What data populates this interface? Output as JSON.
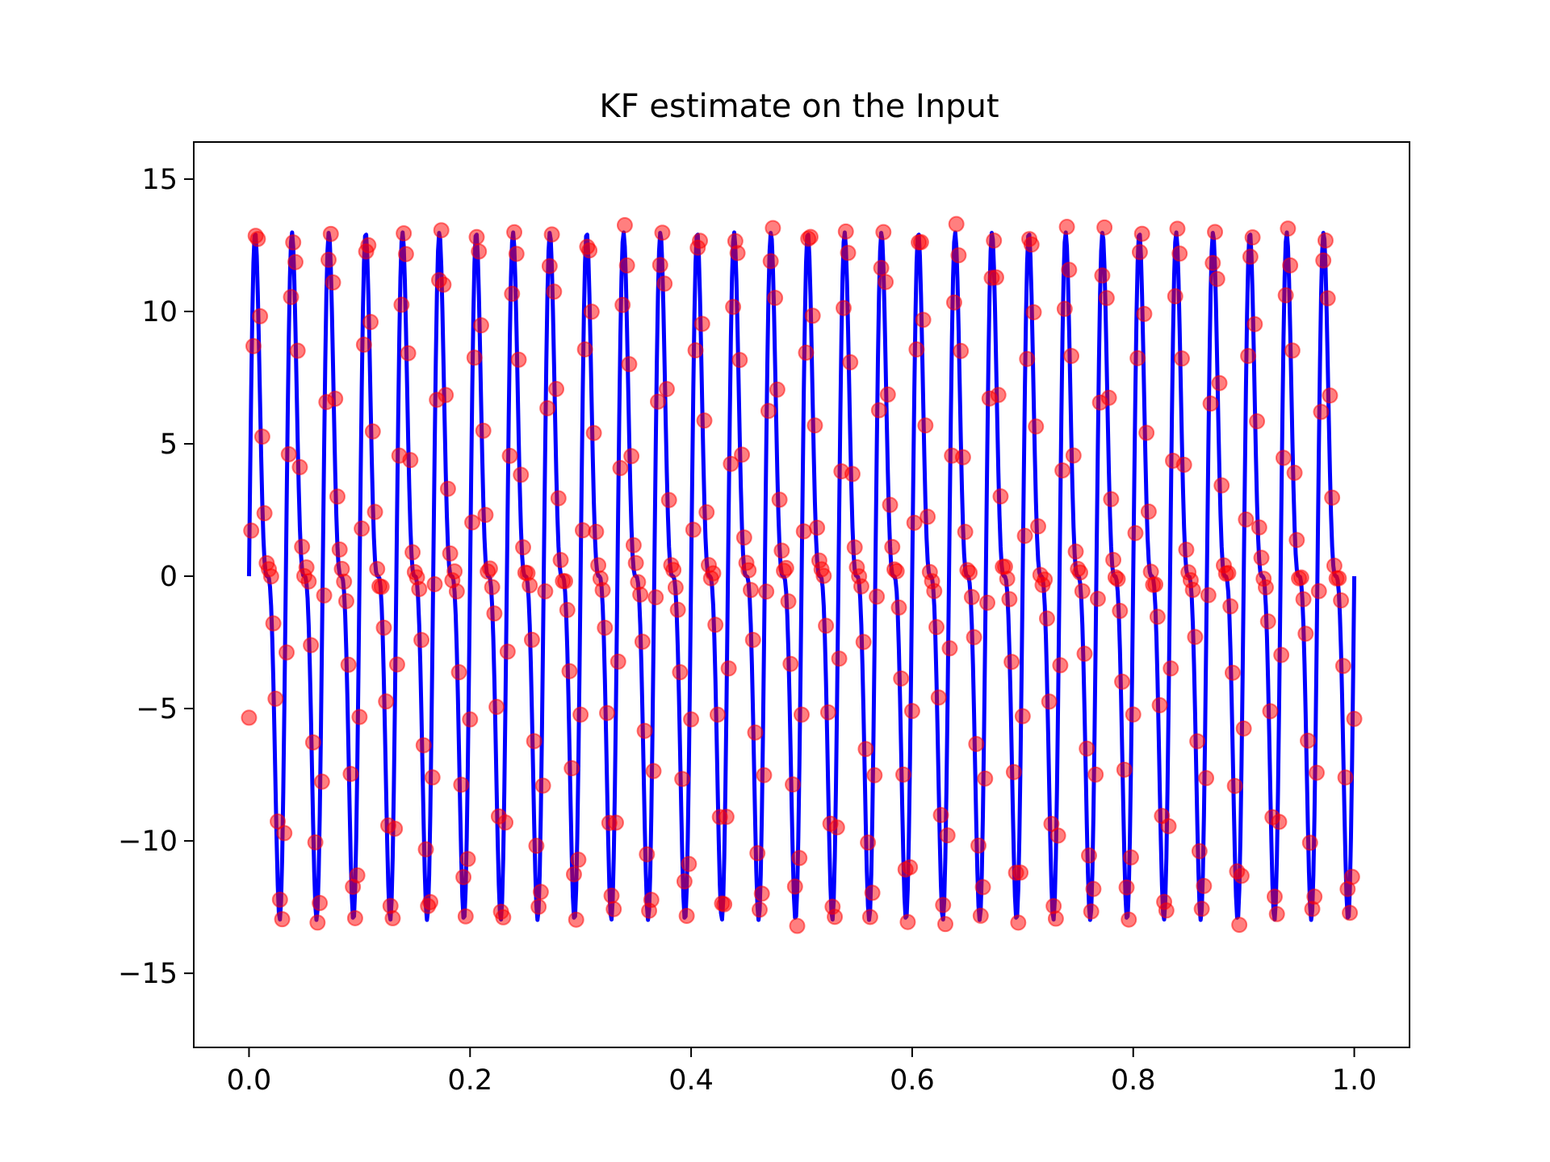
{
  "chart_data": {
    "type": "line",
    "title": "KF estimate on the Input",
    "xlabel": "",
    "ylabel": "",
    "xlim": [
      -0.05,
      1.05
    ],
    "ylim": [
      -17.8,
      16.4
    ],
    "xticks": [
      0.0,
      0.2,
      0.4,
      0.6,
      0.8,
      1.0
    ],
    "xtick_labels": [
      "0.0",
      "0.2",
      "0.4",
      "0.6",
      "0.8",
      "1.0"
    ],
    "yticks": [
      -15,
      -10,
      -5,
      0,
      5,
      10,
      15
    ],
    "ytick_labels": [
      "−15",
      "−10",
      "−5",
      "0",
      "5",
      "10",
      "15"
    ],
    "grid": false,
    "x": {
      "start": 0.0,
      "stop": 1.0,
      "count": 1001
    },
    "series": [
      {
        "kind": "line",
        "color": "#0000ff",
        "formula": "sum of sines",
        "components": [
          {
            "amplitude": 10,
            "frequency_hz": 30
          },
          {
            "amplitude": 5,
            "frequency_hz": 60
          }
        ]
      },
      {
        "kind": "scatter",
        "color": "#ff0000",
        "alpha": 0.5,
        "step": 0.002,
        "lag": 0.0015,
        "noise": 0.4
      }
    ]
  }
}
